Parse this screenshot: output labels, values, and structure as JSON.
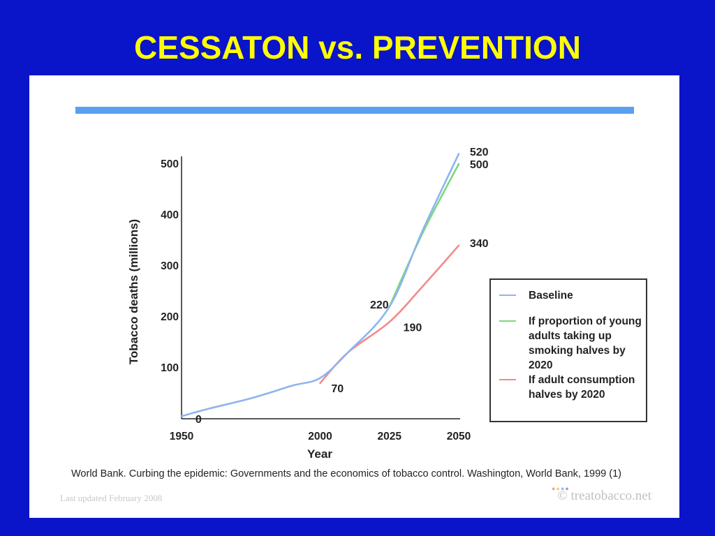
{
  "slide": {
    "title": "CESSATON vs. PREVENTION",
    "source": "World Bank. Curbing the epidemic: Governments and the economics of tobacco control. Washington, World Bank, 1999 (1)",
    "last_updated": "Last updated February 2008",
    "brand": "© treatobacco.net",
    "colors": {
      "background": "#0a14c8",
      "title": "#ffff00",
      "banner": "#5aa0f0"
    }
  },
  "chart_data": {
    "type": "line",
    "title": "",
    "xlabel": "Year",
    "ylabel": "Tobacco deaths (millions)",
    "xlim": [
      1950,
      2050
    ],
    "ylim": [
      0,
      500
    ],
    "x_ticks": [
      "1950",
      "2000",
      "2025",
      "2050"
    ],
    "y_ticks": [
      "100",
      "200",
      "300",
      "400",
      "500"
    ],
    "series": [
      {
        "name": "Baseline",
        "color": "#8fb4ee",
        "points": [
          [
            1950,
            5
          ],
          [
            1960,
            20
          ],
          [
            1975,
            40
          ],
          [
            1990,
            65
          ],
          [
            2000,
            80
          ],
          [
            2010,
            130
          ],
          [
            2025,
            220
          ],
          [
            2037,
            370
          ],
          [
            2050,
            520
          ]
        ]
      },
      {
        "name": "If proportion of young adults taking up smoking halves by 2020",
        "color": "#7cd87c",
        "points": [
          [
            2025,
            220
          ],
          [
            2037,
            365
          ],
          [
            2050,
            500
          ]
        ]
      },
      {
        "name": "If adult consumption halves by 2020",
        "color": "#f28a8a",
        "points": [
          [
            2000,
            70
          ],
          [
            2010,
            130
          ],
          [
            2025,
            190
          ],
          [
            2037,
            260
          ],
          [
            2050,
            340
          ]
        ]
      }
    ],
    "annotations": [
      {
        "text": "0",
        "x": 1955,
        "y": 0
      },
      {
        "text": "70",
        "x": 2004,
        "y": 60
      },
      {
        "text": "190",
        "x": 2030,
        "y": 180
      },
      {
        "text": "220",
        "x": 2018,
        "y": 225
      },
      {
        "text": "340",
        "x": 2054,
        "y": 345
      },
      {
        "text": "500",
        "x": 2054,
        "y": 500
      },
      {
        "text": "520",
        "x": 2054,
        "y": 525
      }
    ],
    "legend_placement": "right",
    "grid": false
  }
}
